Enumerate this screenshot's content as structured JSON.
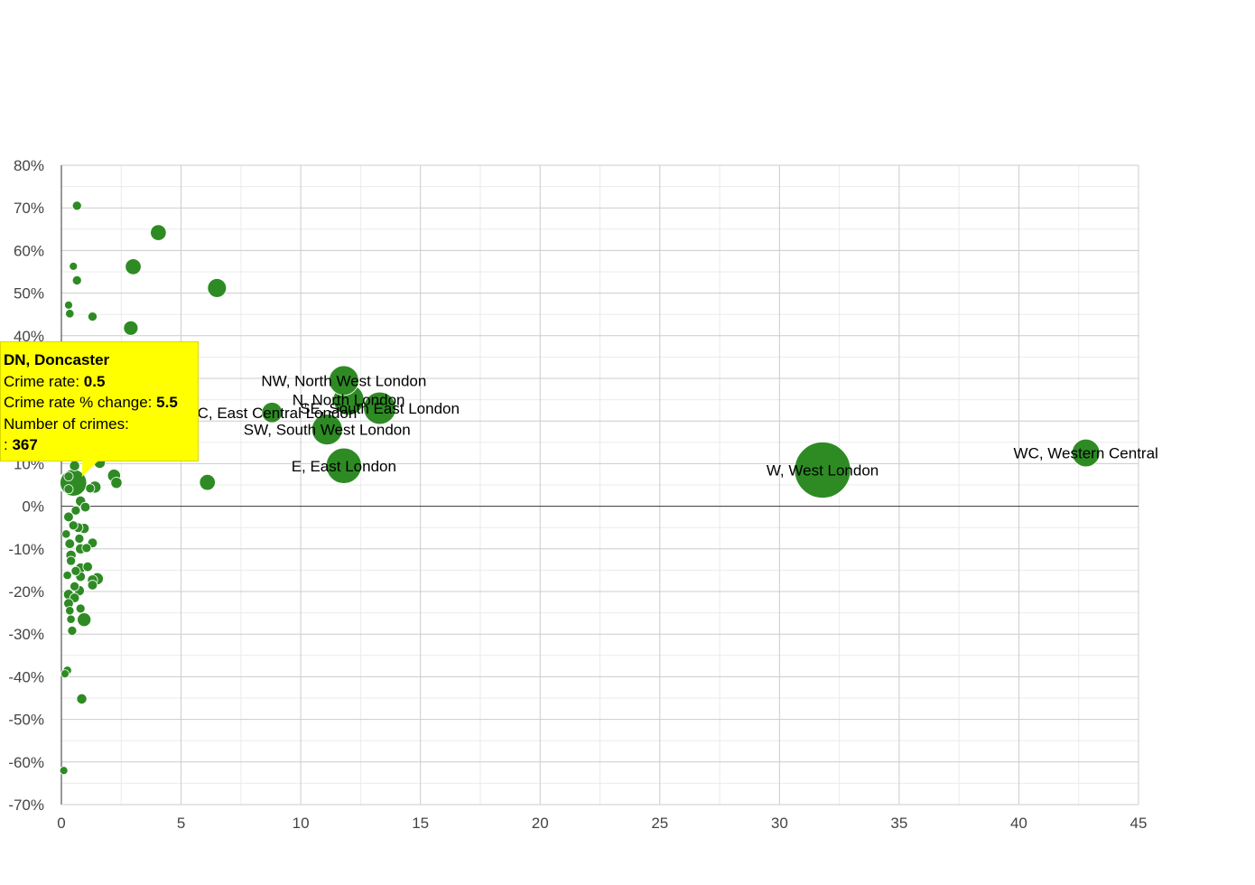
{
  "chart_data": {
    "type": "scatter",
    "x_ticks": [
      "0",
      "5",
      "10",
      "15",
      "20",
      "25",
      "30",
      "35",
      "40",
      "45"
    ],
    "y_ticks": [
      "80%",
      "70%",
      "60%",
      "50%",
      "40%",
      "30%",
      "20%",
      "10%",
      "0%",
      "-10%",
      "-20%",
      "-30%",
      "-40%",
      "-50%",
      "-60%",
      "-70%"
    ],
    "xlim": [
      0,
      45
    ],
    "ylim": [
      -70,
      80
    ],
    "grid": true,
    "marker_color": "#2e8b24",
    "points": [
      {
        "x": 42.8,
        "y": 12.5,
        "size": 367,
        "label": "WC, Western Central"
      },
      {
        "x": 31.8,
        "y": 8.5,
        "size": 1500,
        "label": "W, West London"
      },
      {
        "x": 11.8,
        "y": 29.5,
        "size": 420,
        "label": "NW, North West London"
      },
      {
        "x": 12.0,
        "y": 25.0,
        "size": 450,
        "label": "N, North London"
      },
      {
        "x": 13.3,
        "y": 23.0,
        "size": 500,
        "label": "SE, South East London"
      },
      {
        "x": 8.8,
        "y": 22.0,
        "size": 200,
        "label": "EC, East Central London"
      },
      {
        "x": 11.1,
        "y": 18.0,
        "size": 450,
        "label": "SW, South West London"
      },
      {
        "x": 11.8,
        "y": 9.5,
        "size": 600,
        "label": "E, East London"
      },
      {
        "x": 0.5,
        "y": 5.5,
        "size": 367,
        "label": ""
      },
      {
        "x": 0.65,
        "y": 70.5,
        "size": 40,
        "label": ""
      },
      {
        "x": 4.05,
        "y": 64.2,
        "size": 120,
        "label": ""
      },
      {
        "x": 3.0,
        "y": 56.2,
        "size": 120,
        "label": ""
      },
      {
        "x": 0.5,
        "y": 56.3,
        "size": 30,
        "label": ""
      },
      {
        "x": 0.65,
        "y": 53.0,
        "size": 40,
        "label": ""
      },
      {
        "x": 6.5,
        "y": 51.2,
        "size": 170,
        "label": ""
      },
      {
        "x": 0.3,
        "y": 47.2,
        "size": 30,
        "label": ""
      },
      {
        "x": 0.35,
        "y": 45.2,
        "size": 35,
        "label": ""
      },
      {
        "x": 1.3,
        "y": 44.5,
        "size": 40,
        "label": ""
      },
      {
        "x": 2.9,
        "y": 41.8,
        "size": 100,
        "label": ""
      },
      {
        "x": 2.2,
        "y": 7.2,
        "size": 80,
        "label": ""
      },
      {
        "x": 2.3,
        "y": 5.5,
        "size": 60,
        "label": ""
      },
      {
        "x": 6.1,
        "y": 5.6,
        "size": 120,
        "label": ""
      },
      {
        "x": 1.6,
        "y": 10.2,
        "size": 60,
        "label": ""
      },
      {
        "x": 1.4,
        "y": 4.5,
        "size": 70,
        "label": ""
      },
      {
        "x": 1.2,
        "y": 4.2,
        "size": 40,
        "label": ""
      },
      {
        "x": 0.55,
        "y": 9.5,
        "size": 50,
        "label": ""
      },
      {
        "x": 0.3,
        "y": 7.0,
        "size": 40,
        "label": ""
      },
      {
        "x": 0.3,
        "y": 4.0,
        "size": 40,
        "label": ""
      },
      {
        "x": 0.8,
        "y": 1.2,
        "size": 50,
        "label": ""
      },
      {
        "x": 1.0,
        "y": -0.2,
        "size": 45,
        "label": ""
      },
      {
        "x": 0.6,
        "y": -1.0,
        "size": 40,
        "label": ""
      },
      {
        "x": 0.3,
        "y": -2.5,
        "size": 45,
        "label": ""
      },
      {
        "x": 0.5,
        "y": -4.5,
        "size": 40,
        "label": ""
      },
      {
        "x": 0.95,
        "y": -5.2,
        "size": 50,
        "label": ""
      },
      {
        "x": 0.7,
        "y": -5.0,
        "size": 45,
        "label": ""
      },
      {
        "x": 0.2,
        "y": -6.5,
        "size": 35,
        "label": ""
      },
      {
        "x": 0.75,
        "y": -7.6,
        "size": 40,
        "label": ""
      },
      {
        "x": 0.35,
        "y": -8.8,
        "size": 45,
        "label": ""
      },
      {
        "x": 1.3,
        "y": -8.6,
        "size": 45,
        "label": ""
      },
      {
        "x": 0.8,
        "y": -10.0,
        "size": 50,
        "label": ""
      },
      {
        "x": 1.05,
        "y": -9.8,
        "size": 40,
        "label": ""
      },
      {
        "x": 0.4,
        "y": -11.5,
        "size": 50,
        "label": ""
      },
      {
        "x": 0.4,
        "y": -12.8,
        "size": 40,
        "label": ""
      },
      {
        "x": 0.8,
        "y": -14.5,
        "size": 50,
        "label": ""
      },
      {
        "x": 1.1,
        "y": -14.2,
        "size": 45,
        "label": ""
      },
      {
        "x": 0.6,
        "y": -15.2,
        "size": 40,
        "label": ""
      },
      {
        "x": 0.8,
        "y": -16.5,
        "size": 45,
        "label": ""
      },
      {
        "x": 0.25,
        "y": -16.2,
        "size": 35,
        "label": ""
      },
      {
        "x": 1.5,
        "y": -17.0,
        "size": 70,
        "label": ""
      },
      {
        "x": 1.3,
        "y": -17.3,
        "size": 50,
        "label": ""
      },
      {
        "x": 0.55,
        "y": -18.8,
        "size": 40,
        "label": ""
      },
      {
        "x": 0.75,
        "y": -19.8,
        "size": 50,
        "label": ""
      },
      {
        "x": 1.3,
        "y": -18.5,
        "size": 45,
        "label": ""
      },
      {
        "x": 0.3,
        "y": -20.7,
        "size": 50,
        "label": ""
      },
      {
        "x": 0.55,
        "y": -21.5,
        "size": 45,
        "label": ""
      },
      {
        "x": 0.3,
        "y": -22.8,
        "size": 45,
        "label": ""
      },
      {
        "x": 0.8,
        "y": -24.0,
        "size": 40,
        "label": ""
      },
      {
        "x": 0.35,
        "y": -24.5,
        "size": 35,
        "label": ""
      },
      {
        "x": 0.4,
        "y": -26.5,
        "size": 35,
        "label": ""
      },
      {
        "x": 0.95,
        "y": -26.6,
        "size": 90,
        "label": ""
      },
      {
        "x": 0.45,
        "y": -29.2,
        "size": 40,
        "label": ""
      },
      {
        "x": 0.25,
        "y": -38.5,
        "size": 35,
        "label": ""
      },
      {
        "x": 0.15,
        "y": -39.3,
        "size": 30,
        "label": ""
      },
      {
        "x": 0.85,
        "y": -45.2,
        "size": 50,
        "label": ""
      },
      {
        "x": 0.1,
        "y": -62.0,
        "size": 30,
        "label": ""
      }
    ]
  },
  "tooltip": {
    "title": "DN, Doncaster",
    "rate_label": "Crime rate: ",
    "rate_value": "0.5",
    "change_label": "Crime rate % change: ",
    "change_value": "5.5",
    "count_label": "Number of crimes:",
    "count_prefix": ": ",
    "count_value": "367"
  }
}
